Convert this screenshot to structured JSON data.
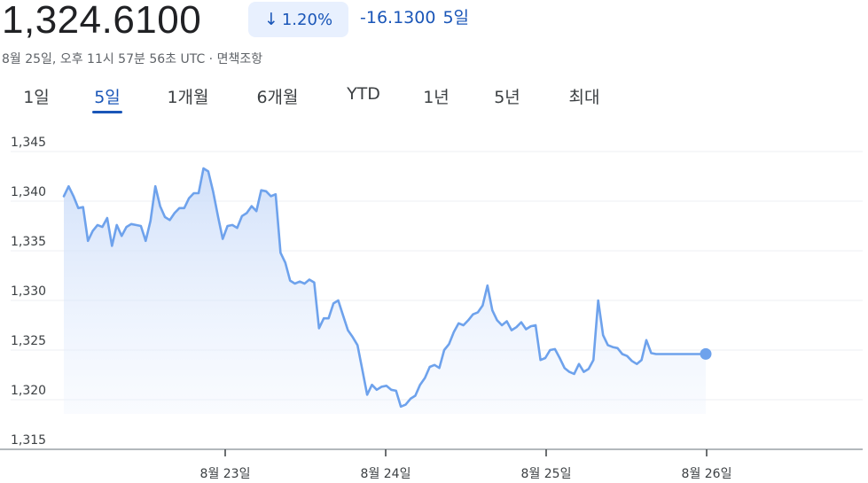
{
  "header": {
    "price": "1,324.6100",
    "change_percent": "1.20%",
    "change_arrow": "↓",
    "change_abs": "-16.1300",
    "change_period": "5일",
    "meta": "8월 25일, 오후 11시 57분 56초 UTC · 면책조항"
  },
  "tabs": [
    {
      "label": "1일",
      "active": false
    },
    {
      "label": "5일",
      "active": true
    },
    {
      "label": "1개월",
      "active": false
    },
    {
      "label": "6개월",
      "active": false
    },
    {
      "label": "YTD",
      "active": false
    },
    {
      "label": "1년",
      "active": false
    },
    {
      "label": "5년",
      "active": false
    },
    {
      "label": "최대",
      "active": false
    }
  ],
  "colors": {
    "line": "#6ea2ec",
    "fill": "#dbe8fc",
    "accent": "#1a56b8"
  },
  "chart_data": {
    "type": "area",
    "title": "",
    "xlabel": "",
    "ylabel": "",
    "ylim": [
      1315,
      1345
    ],
    "yticks": [
      "1,315",
      "1,320",
      "1,325",
      "1,330",
      "1,335",
      "1,340",
      "1,345"
    ],
    "ytick_values": [
      1315,
      1320,
      1325,
      1330,
      1335,
      1340,
      1345
    ],
    "xticks": [
      "8월 23일",
      "8월 24일",
      "8월 25일",
      "8월 26일"
    ],
    "xtick_values": [
      1,
      2,
      3,
      4
    ],
    "xlim": [
      0,
      5
    ],
    "grid": true,
    "series": [
      {
        "x": [
          0.0,
          0.03,
          0.06,
          0.09,
          0.12,
          0.15,
          0.18,
          0.21,
          0.24,
          0.27,
          0.3,
          0.33,
          0.36,
          0.39,
          0.42,
          0.45,
          0.48,
          0.51,
          0.54,
          0.57,
          0.6,
          0.63,
          0.66,
          0.69,
          0.72,
          0.75,
          0.78,
          0.81,
          0.84,
          0.87,
          0.9,
          0.93,
          0.96,
          0.99,
          1.02,
          1.05,
          1.08,
          1.11,
          1.14,
          1.17,
          1.2,
          1.23,
          1.26,
          1.29,
          1.32,
          1.35,
          1.38,
          1.41,
          1.44,
          1.47,
          1.5,
          1.53,
          1.56,
          1.59,
          1.62,
          1.65,
          1.68,
          1.71,
          1.74,
          1.77,
          1.8,
          1.83,
          1.86,
          1.89,
          1.92,
          1.95,
          1.98,
          2.01,
          2.04,
          2.07,
          2.1,
          2.13,
          2.16,
          2.19,
          2.22,
          2.25,
          2.28,
          2.31,
          2.34,
          2.37,
          2.4,
          2.43,
          2.46,
          2.49,
          2.52,
          2.55,
          2.58,
          2.61,
          2.64,
          2.67,
          2.7,
          2.73,
          2.76,
          2.79,
          2.82,
          2.85,
          2.88,
          2.91,
          2.94,
          2.97,
          3.0,
          3.03,
          3.06,
          3.09,
          3.12,
          3.15,
          3.18,
          3.21,
          3.24,
          3.27,
          3.3,
          3.33,
          3.36,
          3.39,
          3.42,
          3.45,
          3.48,
          3.51,
          3.54,
          3.57,
          3.6,
          3.63,
          3.66,
          3.69,
          3.72,
          3.75,
          3.78,
          3.81,
          3.84,
          3.87,
          3.9,
          3.93,
          3.96,
          4.0
        ],
        "y": [
          1340.5,
          1341.5,
          1340.5,
          1339.3,
          1339.4,
          1336.0,
          1337.0,
          1337.6,
          1337.4,
          1338.3,
          1335.5,
          1337.6,
          1336.5,
          1337.4,
          1337.7,
          1337.6,
          1337.5,
          1336.0,
          1338.0,
          1341.5,
          1339.5,
          1338.4,
          1338.1,
          1338.8,
          1339.3,
          1339.3,
          1340.3,
          1340.8,
          1340.8,
          1343.3,
          1343.0,
          1341.0,
          1338.5,
          1336.2,
          1337.5,
          1337.6,
          1337.3,
          1338.5,
          1338.8,
          1339.5,
          1339.0,
          1341.1,
          1341.0,
          1340.5,
          1340.7,
          1334.8,
          1333.8,
          1332.0,
          1331.7,
          1331.9,
          1331.7,
          1332.1,
          1331.8,
          1327.2,
          1328.2,
          1328.2,
          1329.7,
          1330.0,
          1328.5,
          1327.0,
          1326.3,
          1325.5,
          1323.0,
          1320.5,
          1321.5,
          1321.0,
          1321.3,
          1321.4,
          1321.0,
          1320.9,
          1319.3,
          1319.5,
          1320.1,
          1320.4,
          1321.5,
          1322.2,
          1323.3,
          1323.5,
          1323.2,
          1325.0,
          1325.6,
          1326.8,
          1327.7,
          1327.5,
          1328.0,
          1328.6,
          1328.8,
          1329.5,
          1331.5,
          1329.0,
          1328.0,
          1327.5,
          1327.9,
          1327.0,
          1327.3,
          1327.8,
          1327.1,
          1327.4,
          1327.5,
          1324.0,
          1324.2,
          1325.0,
          1325.1,
          1324.2,
          1323.2,
          1322.8,
          1322.6,
          1323.6,
          1322.8,
          1323.1,
          1324.0,
          1330.0,
          1326.5,
          1325.5,
          1325.3,
          1325.2,
          1324.6,
          1324.4,
          1323.9,
          1323.6,
          1324.0,
          1326.0,
          1324.7,
          1324.6,
          1324.6,
          1324.6,
          1324.6,
          1324.6,
          1324.6,
          1324.6,
          1324.6,
          1324.6,
          1324.6,
          1324.61
        ]
      }
    ],
    "last_point": {
      "x": 4.0,
      "y": 1324.61
    }
  }
}
